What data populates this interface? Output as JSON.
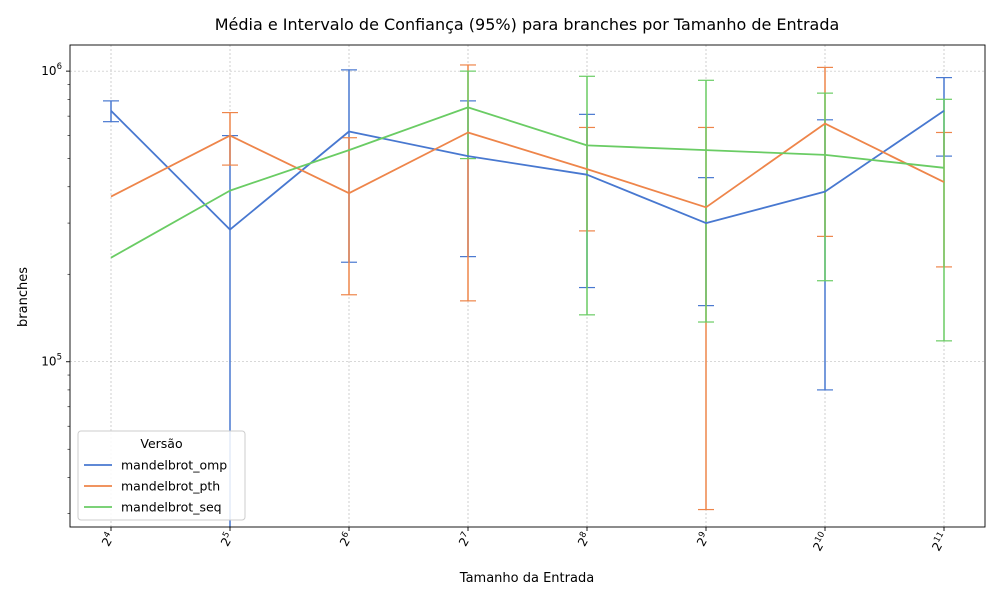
{
  "chart_data": {
    "type": "line",
    "title": "Média e Intervalo de Confiança (95%) para branches por Tamanho de Entrada",
    "xlabel": "Tamanho da Entrada",
    "ylabel": "branches",
    "yscale": "log",
    "ylim": [
      27000,
      1230000
    ],
    "grid": true,
    "legend": {
      "title": "Versão",
      "position": "lower-left"
    },
    "categories": [
      "2^4",
      "2^5",
      "2^6",
      "2^7",
      "2^8",
      "2^9",
      "2^10",
      "2^11"
    ],
    "y_ticks": [
      {
        "base": "10",
        "exp": "5",
        "value": 100000
      },
      {
        "base": "10",
        "exp": "6",
        "value": 1000000
      }
    ],
    "series": [
      {
        "name": "mandelbrot_omp",
        "color": "#4878d0",
        "values": [
          730000,
          285000,
          620000,
          510000,
          440000,
          300000,
          385000,
          730000
        ],
        "ci_low": [
          670000,
          22000,
          220000,
          230000,
          180000,
          156000,
          80000,
          510000
        ],
        "ci_high": [
          790000,
          600000,
          1010000,
          790000,
          710000,
          430000,
          680000,
          950000
        ]
      },
      {
        "name": "mandelbrot_pth",
        "color": "#ee854a",
        "values": [
          370000,
          600000,
          380000,
          615000,
          460000,
          340000,
          660000,
          415000
        ],
        "ci_low": [
          370000,
          475000,
          170000,
          162000,
          282000,
          31000,
          270000,
          212000
        ],
        "ci_high": [
          370000,
          720000,
          590000,
          1050000,
          640000,
          640000,
          1030000,
          615000
        ]
      },
      {
        "name": "mandelbrot_seq",
        "color": "#6acc64",
        "values": [
          228000,
          388000,
          535000,
          750000,
          555000,
          535000,
          515000,
          465000
        ],
        "ci_low": [
          228000,
          388000,
          535000,
          500000,
          145000,
          137000,
          190000,
          118000
        ],
        "ci_high": [
          228000,
          388000,
          535000,
          1000000,
          960000,
          930000,
          840000,
          800000
        ]
      }
    ]
  }
}
